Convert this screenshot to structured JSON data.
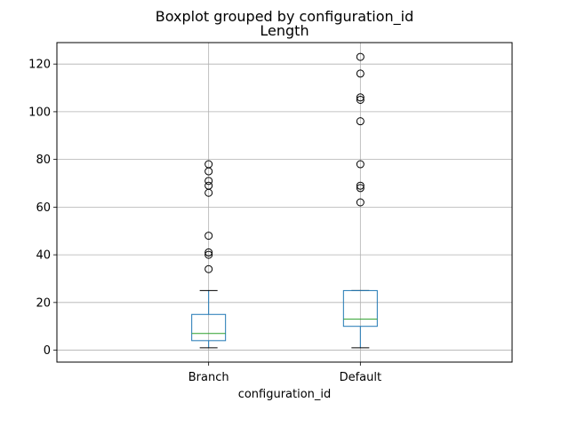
{
  "chart_data": {
    "type": "box",
    "title": "Boxplot grouped by configuration_id",
    "subtitle": "Length",
    "xlabel": "configuration_id",
    "ylabel": "",
    "ylim": [
      -5,
      129
    ],
    "yticks": [
      0,
      20,
      40,
      60,
      80,
      100,
      120
    ],
    "grid": true,
    "categories": [
      "Branch",
      "Default"
    ],
    "boxes": [
      {
        "category": "Branch",
        "whisker_low": 1,
        "q1": 4,
        "median": 7,
        "q3": 15,
        "whisker_high": 25,
        "outliers": [
          34,
          40,
          41,
          48,
          66,
          69,
          71,
          75,
          78
        ]
      },
      {
        "category": "Default",
        "whisker_low": 1,
        "q1": 10,
        "median": 13,
        "q3": 25,
        "whisker_high": 25,
        "outliers": [
          62,
          68,
          69,
          78,
          96,
          105,
          106,
          116,
          123
        ]
      }
    ],
    "colors": {
      "box": "#1f77b4",
      "median": "#2ca02c",
      "whisker": "#000000",
      "outlier": "#000000",
      "grid": "#b0b0b0",
      "spine": "#000000"
    }
  }
}
